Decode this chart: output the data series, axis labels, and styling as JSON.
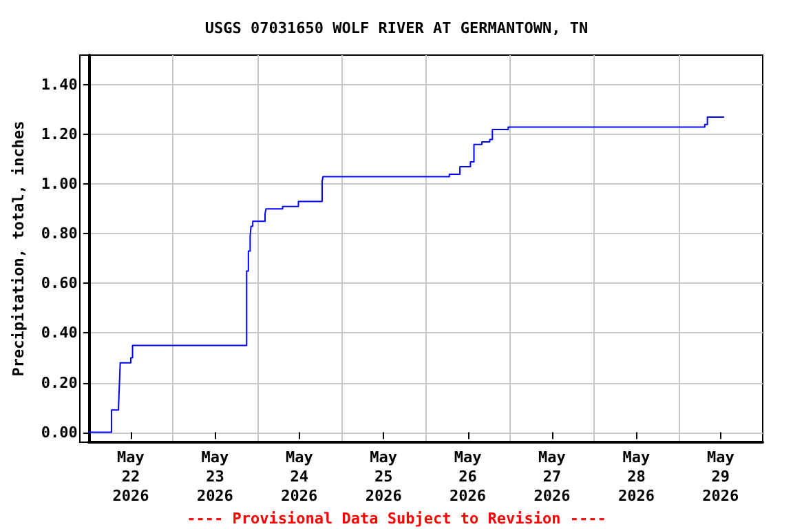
{
  "chart_data": {
    "type": "step",
    "title": "USGS 07031650 WOLF RIVER AT GERMANTOWN, TN",
    "ylabel": "Precipitation, total, inches",
    "annotations": [
      "---- Provisional Data Subject to Revision ----"
    ],
    "x": [
      "2026-05-22T00:00",
      "2026-05-22T06:30",
      "2026-05-22T08:30",
      "2026-05-22T08:45",
      "2026-05-22T09:00",
      "2026-05-22T12:00",
      "2026-05-22T12:30",
      "2026-05-23T21:00",
      "2026-05-23T21:30",
      "2026-05-23T22:00",
      "2026-05-23T22:15",
      "2026-05-23T22:45",
      "2026-05-24T02:15",
      "2026-05-24T02:30",
      "2026-05-24T07:15",
      "2026-05-24T11:45",
      "2026-05-24T18:30",
      "2026-05-24T18:45",
      "2026-05-26T06:45",
      "2026-05-26T09:45",
      "2026-05-26T12:45",
      "2026-05-26T13:45",
      "2026-05-26T16:00",
      "2026-05-26T18:15",
      "2026-05-26T19:00",
      "2026-05-26T23:30",
      "2026-05-29T07:30",
      "2026-05-29T08:15",
      "2026-05-29T13:00"
    ],
    "series": [
      {
        "color": "#0000ff",
        "values": [
          0.0,
          0.09,
          0.1,
          0.19,
          0.28,
          0.3,
          0.35,
          0.65,
          0.73,
          0.79,
          0.83,
          0.85,
          0.88,
          0.9,
          0.91,
          0.93,
          1.01,
          1.03,
          1.04,
          1.07,
          1.09,
          1.16,
          1.17,
          1.18,
          1.22,
          1.23,
          1.24,
          1.27,
          1.27
        ]
      }
    ],
    "xlim": [
      "2026-05-22T00:00",
      "2026-05-30T00:00"
    ],
    "xticks": [
      {
        "value": "2026-05-22T12:00",
        "label": "May\n22\n2026"
      },
      {
        "value": "2026-05-23T00:00",
        "label": null
      },
      {
        "value": "2026-05-23T12:00",
        "label": "May\n23\n2026"
      },
      {
        "value": "2026-05-24T00:00",
        "label": null
      },
      {
        "value": "2026-05-24T12:00",
        "label": "May\n24\n2026"
      },
      {
        "value": "2026-05-25T00:00",
        "label": null
      },
      {
        "value": "2026-05-25T12:00",
        "label": "May\n25\n2026"
      },
      {
        "value": "2026-05-26T00:00",
        "label": null
      },
      {
        "value": "2026-05-26T12:00",
        "label": "May\n26\n2026"
      },
      {
        "value": "2026-05-27T00:00",
        "label": null
      },
      {
        "value": "2026-05-27T12:00",
        "label": "May\n27\n2026"
      },
      {
        "value": "2026-05-28T00:00",
        "label": null
      },
      {
        "value": "2026-05-28T12:00",
        "label": "May\n28\n2026"
      },
      {
        "value": "2026-05-29T00:00",
        "label": null
      },
      {
        "value": "2026-05-29T12:00",
        "label": "May\n29\n2026"
      }
    ],
    "ylim": [
      -0.04,
      1.52
    ],
    "yticks": [
      {
        "value": 0,
        "label": "0.00"
      },
      {
        "value": 0.2,
        "label": "0.20"
      },
      {
        "value": 0.4,
        "label": "0.40"
      },
      {
        "value": 0.6,
        "label": "0.60"
      },
      {
        "value": 0.8,
        "label": "0.80"
      },
      {
        "value": 1.0,
        "label": "1.00"
      },
      {
        "value": 1.2,
        "label": "1.20"
      },
      {
        "value": 1.4,
        "label": "1.40"
      }
    ],
    "grid": true
  }
}
